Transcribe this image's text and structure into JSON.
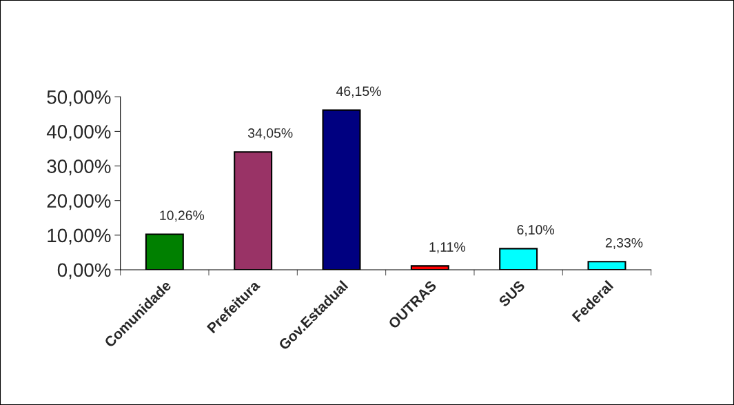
{
  "chart_data": {
    "type": "bar",
    "categories": [
      "Comunidade",
      "Prefeitura",
      "Gov.Estadual",
      "OUTRAS",
      "SUS",
      "Federal"
    ],
    "values": [
      10.26,
      34.05,
      46.15,
      1.11,
      6.1,
      2.33
    ],
    "colors": [
      "#008000",
      "#993366",
      "#000080",
      "#ff0000",
      "#00ffff",
      "#00ffff"
    ],
    "value_labels": [
      "10,26%",
      "34,05%",
      "46,15%",
      "1,11%",
      "6,10%",
      "2,33%"
    ],
    "ylim": [
      0,
      50
    ],
    "yticks": [
      {
        "value": 0,
        "label": "0,00%"
      },
      {
        "value": 10,
        "label": "10,00%"
      },
      {
        "value": 20,
        "label": "20,00%"
      },
      {
        "value": 30,
        "label": "30,00%"
      },
      {
        "value": 40,
        "label": "40,00%"
      },
      {
        "value": 50,
        "label": "50,00%"
      }
    ],
    "grid": false,
    "legend": false
  }
}
